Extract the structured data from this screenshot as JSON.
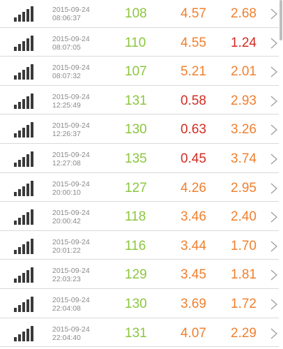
{
  "colors": {
    "green": "#8cc63f",
    "red": "#d22d22",
    "orange": "#f08030",
    "date_gray": "#8a8a8a",
    "icon": "#3a3a3a"
  },
  "icons": {
    "row_icon": "signal-bars-icon",
    "row_action": "chevron-right-icon"
  },
  "rows": [
    {
      "date": "2015-09-24",
      "time": "08:06:37",
      "v1": "108",
      "v2": "4.57",
      "v2_color": "orange",
      "v3": "2.68",
      "v3_color": "orange"
    },
    {
      "date": "2015-09-24",
      "time": "08:07:05",
      "v1": "110",
      "v2": "4.55",
      "v2_color": "orange",
      "v3": "1.24",
      "v3_color": "red"
    },
    {
      "date": "2015-09-24",
      "time": "08:07:32",
      "v1": "107",
      "v2": "5.21",
      "v2_color": "orange",
      "v3": "2.01",
      "v3_color": "orange"
    },
    {
      "date": "2015-09-24",
      "time": "12:25:49",
      "v1": "131",
      "v2": "0.58",
      "v2_color": "red",
      "v3": "2.93",
      "v3_color": "orange"
    },
    {
      "date": "2015-09-24",
      "time": "12:26:37",
      "v1": "130",
      "v2": "0.63",
      "v2_color": "red",
      "v3": "3.26",
      "v3_color": "orange"
    },
    {
      "date": "2015-09-24",
      "time": "12:27:08",
      "v1": "135",
      "v2": "0.45",
      "v2_color": "red",
      "v3": "3.74",
      "v3_color": "orange"
    },
    {
      "date": "2015-09-24",
      "time": "20:00:10",
      "v1": "127",
      "v2": "4.26",
      "v2_color": "orange",
      "v3": "2.95",
      "v3_color": "orange"
    },
    {
      "date": "2015-09-24",
      "time": "20:00:42",
      "v1": "118",
      "v2": "3.46",
      "v2_color": "orange",
      "v3": "2.40",
      "v3_color": "orange"
    },
    {
      "date": "2015-09-24",
      "time": "20:01:22",
      "v1": "116",
      "v2": "3.44",
      "v2_color": "orange",
      "v3": "1.70",
      "v3_color": "orange"
    },
    {
      "date": "2015-09-24",
      "time": "22:03:23",
      "v1": "129",
      "v2": "3.45",
      "v2_color": "orange",
      "v3": "1.81",
      "v3_color": "orange"
    },
    {
      "date": "2015-09-24",
      "time": "22:04:08",
      "v1": "130",
      "v2": "3.69",
      "v2_color": "orange",
      "v3": "1.72",
      "v3_color": "orange"
    },
    {
      "date": "2015-09-24",
      "time": "22:04:40",
      "v1": "131",
      "v2": "4.07",
      "v2_color": "orange",
      "v3": "2.29",
      "v3_color": "orange"
    }
  ]
}
